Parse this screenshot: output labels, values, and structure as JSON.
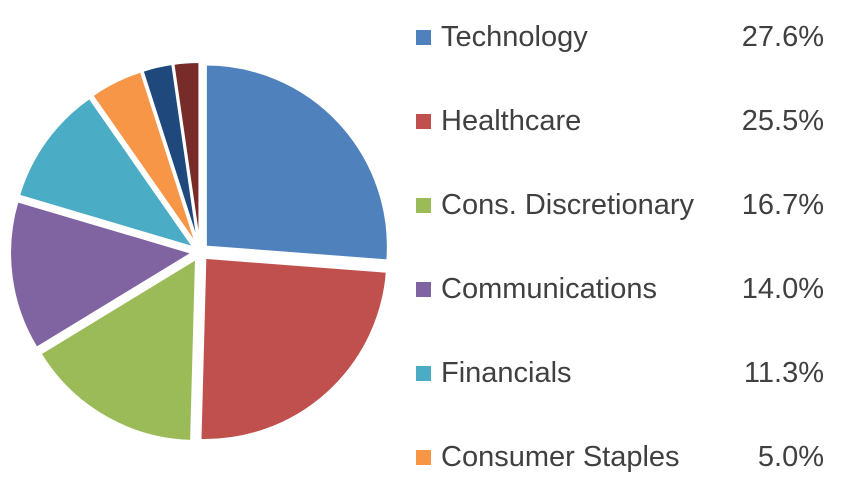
{
  "chart_data": {
    "type": "pie",
    "title": "",
    "legend_position": "right",
    "slices": [
      {
        "label": "Technology",
        "value": 27.6,
        "display": "27.6%",
        "color": "#4F81BD"
      },
      {
        "label": "Healthcare",
        "value": 25.5,
        "display": "25.5%",
        "color": "#C0504D"
      },
      {
        "label": "Cons. Discretionary",
        "value": 16.7,
        "display": "16.7%",
        "color": "#9BBB59"
      },
      {
        "label": "Communications",
        "value": 14.0,
        "display": "14.0%",
        "color": "#8064A2"
      },
      {
        "label": "Financials",
        "value": 11.3,
        "display": "11.3%",
        "color": "#4BACC6"
      },
      {
        "label": "Consumer Staples",
        "value": 5.0,
        "display": "5.0%",
        "color": "#F79646"
      },
      {
        "label": "",
        "value": 2.8,
        "display": "",
        "color": "#1F497D"
      },
      {
        "label": "",
        "value": 2.4,
        "display": "",
        "color": "#772C2A"
      }
    ]
  }
}
